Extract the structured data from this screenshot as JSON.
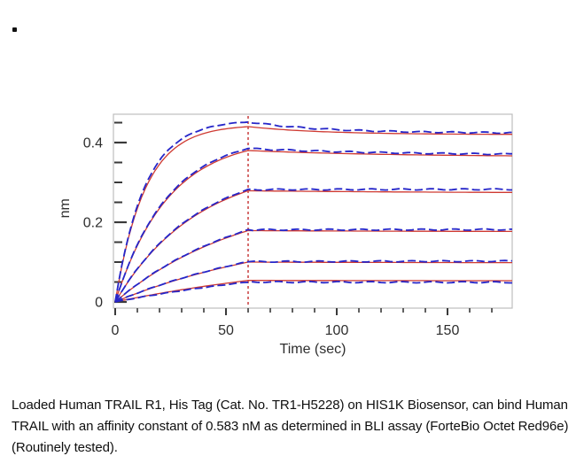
{
  "page": {
    "bullet_glyph": "•"
  },
  "caption": {
    "lines": [
      "Loaded Human TRAIL R1, His Tag (Cat. No. TR1-H5228) on HIS1K Biosensor, can bind Human",
      "TRAIL with an affinity constant of 0.583 nM as determined in BLI assay (ForteBio Octet Red96e)",
      "(Routinely tested)."
    ]
  },
  "chart_data": {
    "type": "line",
    "title": "",
    "xlabel": "Time (sec)",
    "ylabel": "nm",
    "xlim": [
      0,
      180
    ],
    "ylim": [
      0,
      0.47
    ],
    "x_major_ticks": [
      0,
      50,
      100,
      150
    ],
    "x_tick_labels": [
      "0",
      "50",
      "100",
      "150"
    ],
    "x_minor_step": 10,
    "y_major_ticks": [
      0,
      0.2,
      0.4
    ],
    "y_tick_labels": [
      "0",
      "0.2",
      "0.4"
    ],
    "y_minor_step": 0.05,
    "grid": false,
    "legend": "none",
    "phase_divider": {
      "t_sec": 60,
      "color": "#c43030",
      "style": "dashed"
    },
    "colors": {
      "data_trace_blue": "#2626c9",
      "fit_trace_red": "#cf3a32",
      "frame": "#bdbdbd",
      "ticks": "#3a3a3a",
      "labels": "#2e2e2e"
    },
    "association_phase_sec": [
      0,
      60
    ],
    "dissociation_phase_sec": [
      60,
      179
    ],
    "series": [
      {
        "name": "curve-1",
        "k_obs": 0.075,
        "k_diss_data": 0.03,
        "k_diss_fit": 0.03,
        "data_peak_nm": 0.452,
        "fit_peak_nm": 0.44,
        "data_end_nm": 0.424,
        "fit_end_nm": 0.42
      },
      {
        "name": "curve-2",
        "k_obs": 0.042,
        "k_diss_data": 0.015,
        "k_diss_fit": 0.015,
        "data_peak_nm": 0.385,
        "fit_peak_nm": 0.38,
        "data_end_nm": 0.368,
        "fit_end_nm": 0.364
      },
      {
        "name": "curve-3",
        "k_obs": 0.027,
        "k_diss_data": 0.01,
        "k_diss_fit": 0.01,
        "data_peak_nm": 0.282,
        "fit_peak_nm": 0.279,
        "data_end_nm": 0.283,
        "fit_end_nm": 0.273
      },
      {
        "name": "curve-4",
        "k_obs": 0.017,
        "k_diss_data": 0.01,
        "k_diss_fit": 0.01,
        "data_peak_nm": 0.181,
        "fit_peak_nm": 0.179,
        "data_end_nm": 0.182,
        "fit_end_nm": 0.176
      },
      {
        "name": "curve-5",
        "k_obs": 0.012,
        "k_diss_data": 0.01,
        "k_diss_fit": 0.01,
        "data_peak_nm": 0.101,
        "fit_peak_nm": 0.1,
        "data_end_nm": 0.103,
        "fit_end_nm": 0.098
      },
      {
        "name": "curve-6",
        "k_obs": 0.009,
        "k_diss_data": 0.01,
        "k_diss_fit": 0.01,
        "data_peak_nm": 0.05,
        "fit_peak_nm": 0.054,
        "data_end_nm": 0.049,
        "fit_end_nm": 0.053
      }
    ]
  }
}
